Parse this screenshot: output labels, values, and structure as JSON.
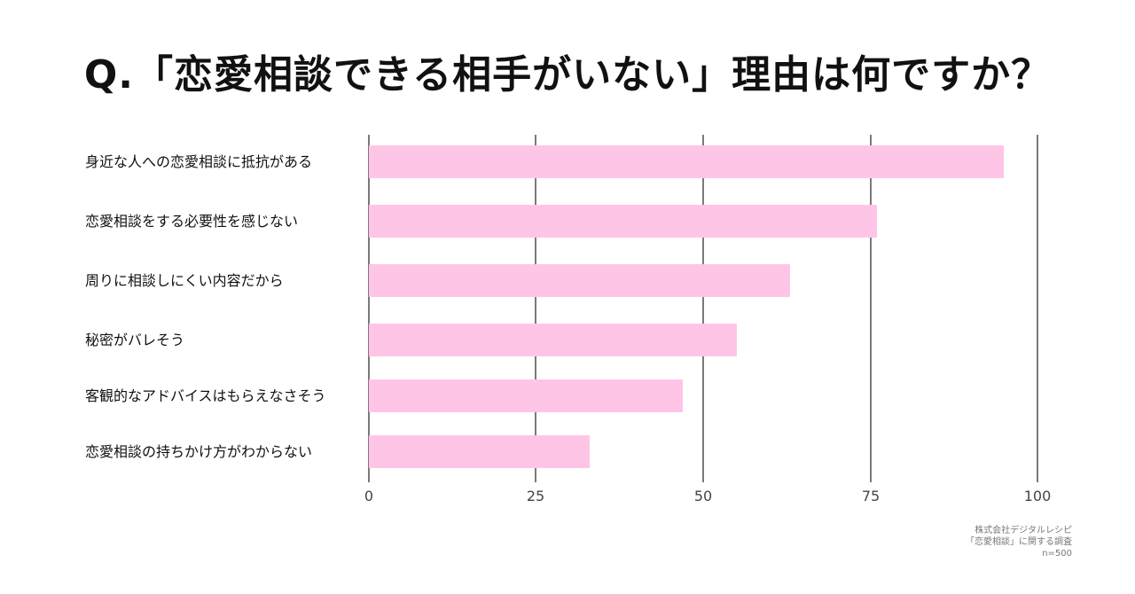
{
  "title": "Q.「恋愛相談できる相手がいない」理由は何ですか？",
  "colors": {
    "bar": "#ffc5e6",
    "grid": "#7a7a7a",
    "text": "#111111"
  },
  "source": {
    "line1": "株式会社デジタルレシピ",
    "line2": "「恋愛相談」に関する調査",
    "line3": "n=500"
  },
  "chart_data": {
    "type": "bar",
    "orientation": "horizontal",
    "title": "Q.「恋愛相談できる相手がいない」理由は何ですか？",
    "xlabel": "",
    "ylabel": "",
    "xlim": [
      0,
      100
    ],
    "x_ticks": [
      "0",
      "25",
      "50",
      "75",
      "100"
    ],
    "grid": true,
    "legend": null,
    "categories": [
      "身近な人への恋愛相談に抵抗がある",
      "恋愛相談をする必要性を感じない",
      "周りに相談しにくい内容だから",
      "秘密がバレそう",
      "客観的なアドバイスはもらえなさそう",
      "恋愛相談の持ちかけ方がわからない"
    ],
    "values": [
      95,
      76,
      63,
      55,
      47,
      33
    ],
    "annotations": [
      "株式会社デジタルレシピ",
      "「恋愛相談」に関する調査",
      "n=500"
    ]
  }
}
